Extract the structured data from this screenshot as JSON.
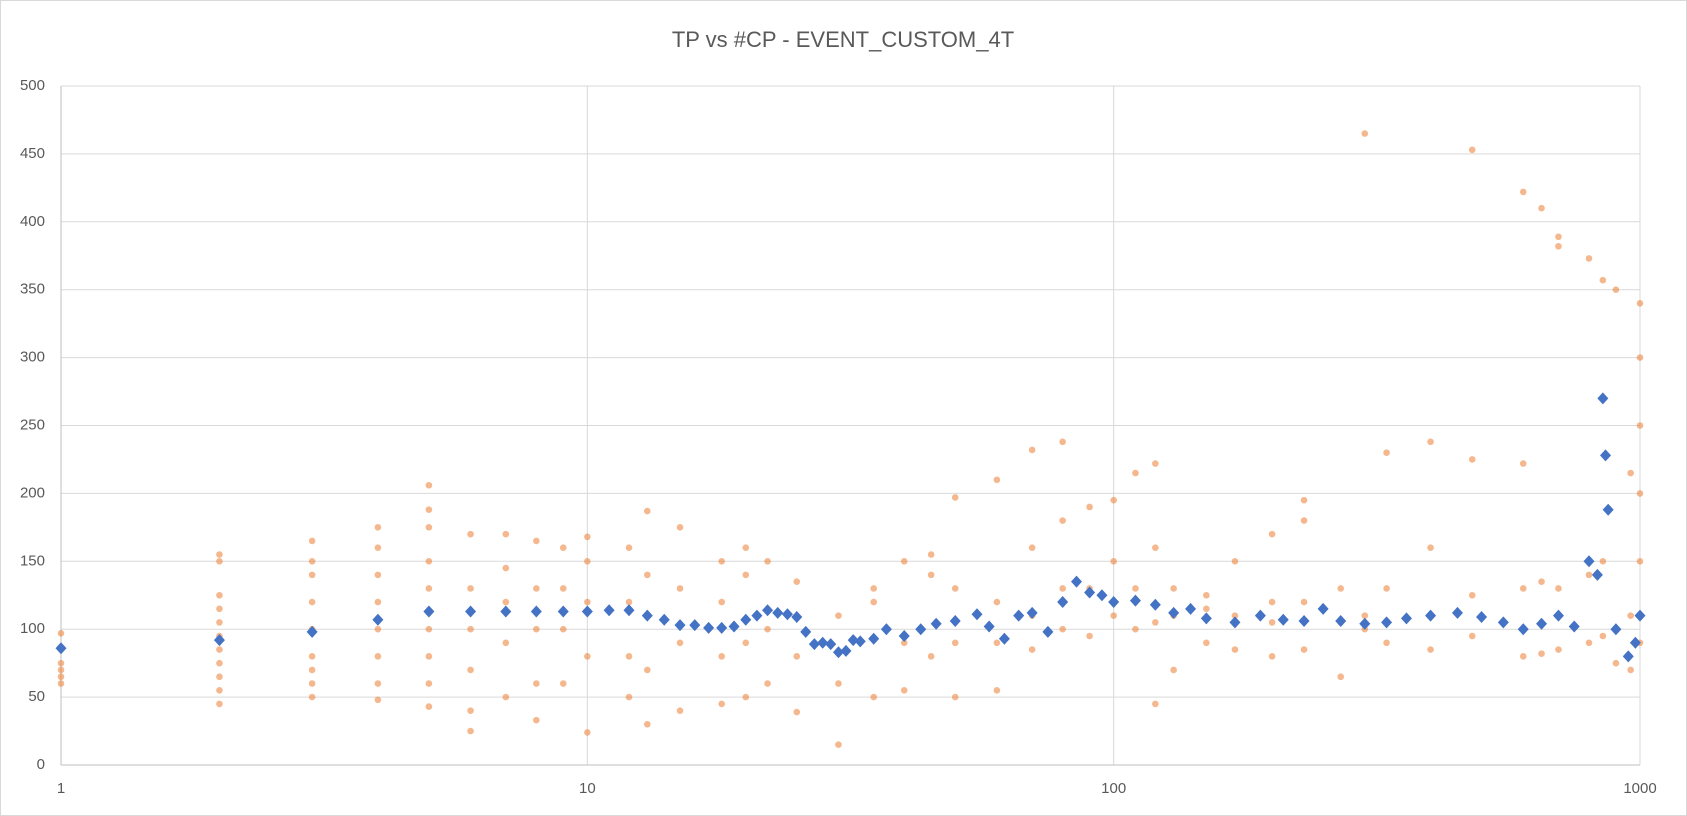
{
  "chart_data": {
    "type": "scatter",
    "title": "TP vs #CP - EVENT_CUSTOM_4T",
    "xscale": "log",
    "xlim": [
      1,
      1000
    ],
    "xticks": [
      1,
      10,
      100,
      1000
    ],
    "ylim": [
      0,
      500
    ],
    "yticks": [
      0,
      50,
      100,
      150,
      200,
      250,
      300,
      350,
      400,
      450,
      500
    ],
    "grid": true,
    "series": [
      {
        "color": "#ed7d31",
        "marker": "circle",
        "x": [
          1,
          1,
          1,
          1,
          1,
          2,
          2,
          2,
          2,
          2,
          2,
          2,
          2,
          2,
          2,
          2,
          3,
          3,
          3,
          3,
          3,
          3,
          3,
          3,
          3,
          4,
          4,
          4,
          4,
          4,
          4,
          4,
          4,
          5,
          5,
          5,
          5,
          5,
          5,
          5,
          5,
          5,
          6,
          6,
          6,
          6,
          6,
          6,
          7,
          7,
          7,
          7,
          7,
          8,
          8,
          8,
          8,
          8,
          9,
          9,
          9,
          9,
          10,
          10,
          10,
          10,
          10,
          12,
          12,
          12,
          12,
          13,
          13,
          13,
          13,
          15,
          15,
          15,
          15,
          18,
          18,
          18,
          18,
          20,
          20,
          20,
          20,
          22,
          22,
          22,
          25,
          25,
          25,
          30,
          30,
          30,
          35,
          35,
          35,
          40,
          40,
          40,
          45,
          45,
          45,
          50,
          50,
          50,
          50,
          60,
          60,
          60,
          60,
          70,
          70,
          70,
          70,
          80,
          80,
          80,
          80,
          90,
          90,
          90,
          100,
          100,
          100,
          110,
          110,
          110,
          120,
          120,
          120,
          120,
          130,
          130,
          130,
          150,
          150,
          150,
          170,
          170,
          170,
          200,
          200,
          200,
          200,
          230,
          230,
          230,
          230,
          270,
          270,
          270,
          300,
          300,
          300,
          330,
          330,
          330,
          400,
          400,
          400,
          400,
          480,
          480,
          480,
          480,
          600,
          600,
          600,
          600,
          650,
          650,
          650,
          700,
          700,
          700,
          700,
          800,
          800,
          800,
          850,
          850,
          850,
          900,
          900,
          900,
          960,
          960,
          960,
          1000,
          1000,
          1000,
          1000,
          1000,
          1000,
          1000
        ],
        "values": [
          60,
          65,
          70,
          75,
          97,
          45,
          55,
          65,
          75,
          85,
          95,
          105,
          115,
          125,
          150,
          155,
          50,
          60,
          70,
          80,
          100,
          120,
          140,
          150,
          165,
          48,
          60,
          80,
          100,
          120,
          140,
          160,
          175,
          43,
          60,
          80,
          100,
          130,
          150,
          175,
          188,
          206,
          25,
          40,
          70,
          100,
          130,
          170,
          50,
          90,
          120,
          145,
          170,
          33,
          60,
          100,
          130,
          165,
          60,
          100,
          130,
          160,
          24,
          80,
          120,
          150,
          168,
          50,
          80,
          120,
          160,
          30,
          70,
          140,
          187,
          40,
          90,
          130,
          175,
          45,
          80,
          120,
          150,
          50,
          90,
          140,
          160,
          60,
          100,
          150,
          39,
          80,
          135,
          15,
          60,
          110,
          50,
          120,
          130,
          55,
          90,
          150,
          80,
          140,
          155,
          50,
          90,
          130,
          197,
          55,
          90,
          120,
          210,
          85,
          110,
          160,
          232,
          100,
          130,
          180,
          238,
          95,
          130,
          190,
          110,
          150,
          195,
          100,
          130,
          215,
          45,
          105,
          160,
          222,
          70,
          110,
          130,
          90,
          115,
          125,
          85,
          110,
          150,
          80,
          105,
          120,
          170,
          85,
          120,
          180,
          195,
          65,
          105,
          130,
          100,
          110,
          465,
          90,
          130,
          230,
          85,
          110,
          160,
          238,
          95,
          125,
          225,
          453,
          80,
          130,
          222,
          422,
          82,
          135,
          410,
          85,
          130,
          389,
          382,
          90,
          140,
          373,
          95,
          150,
          357,
          75,
          100,
          350,
          70,
          110,
          215,
          90,
          110,
          150,
          200,
          250,
          300,
          340
        ]
      },
      {
        "color": "#4472c4",
        "marker": "diamond",
        "x": [
          1,
          2,
          3,
          4,
          5,
          6,
          7,
          8,
          9,
          10,
          11,
          12,
          13,
          14,
          15,
          16,
          17,
          18,
          19,
          20,
          21,
          22,
          23,
          24,
          25,
          26,
          27,
          28,
          29,
          30,
          31,
          32,
          33,
          35,
          37,
          40,
          43,
          46,
          50,
          55,
          58,
          62,
          66,
          70,
          75,
          80,
          85,
          90,
          95,
          100,
          110,
          120,
          130,
          140,
          150,
          170,
          190,
          210,
          230,
          250,
          270,
          300,
          330,
          360,
          400,
          450,
          500,
          550,
          600,
          650,
          700,
          750,
          800,
          830,
          850,
          860,
          870,
          900,
          950,
          980,
          1000
        ],
        "values": [
          86,
          92,
          98,
          107,
          113,
          113,
          113,
          113,
          113,
          113,
          114,
          114,
          110,
          107,
          103,
          103,
          101,
          101,
          102,
          107,
          110,
          114,
          112,
          111,
          109,
          98,
          89,
          90,
          89,
          83,
          84,
          92,
          91,
          93,
          100,
          95,
          100,
          104,
          106,
          111,
          102,
          93,
          110,
          112,
          98,
          120,
          135,
          127,
          125,
          120,
          121,
          118,
          112,
          115,
          108,
          105,
          110,
          107,
          106,
          115,
          106,
          104,
          105,
          108,
          110,
          112,
          109,
          105,
          100,
          104,
          110,
          102,
          150,
          140,
          270,
          228,
          188,
          100,
          80,
          90,
          110
        ]
      }
    ]
  }
}
